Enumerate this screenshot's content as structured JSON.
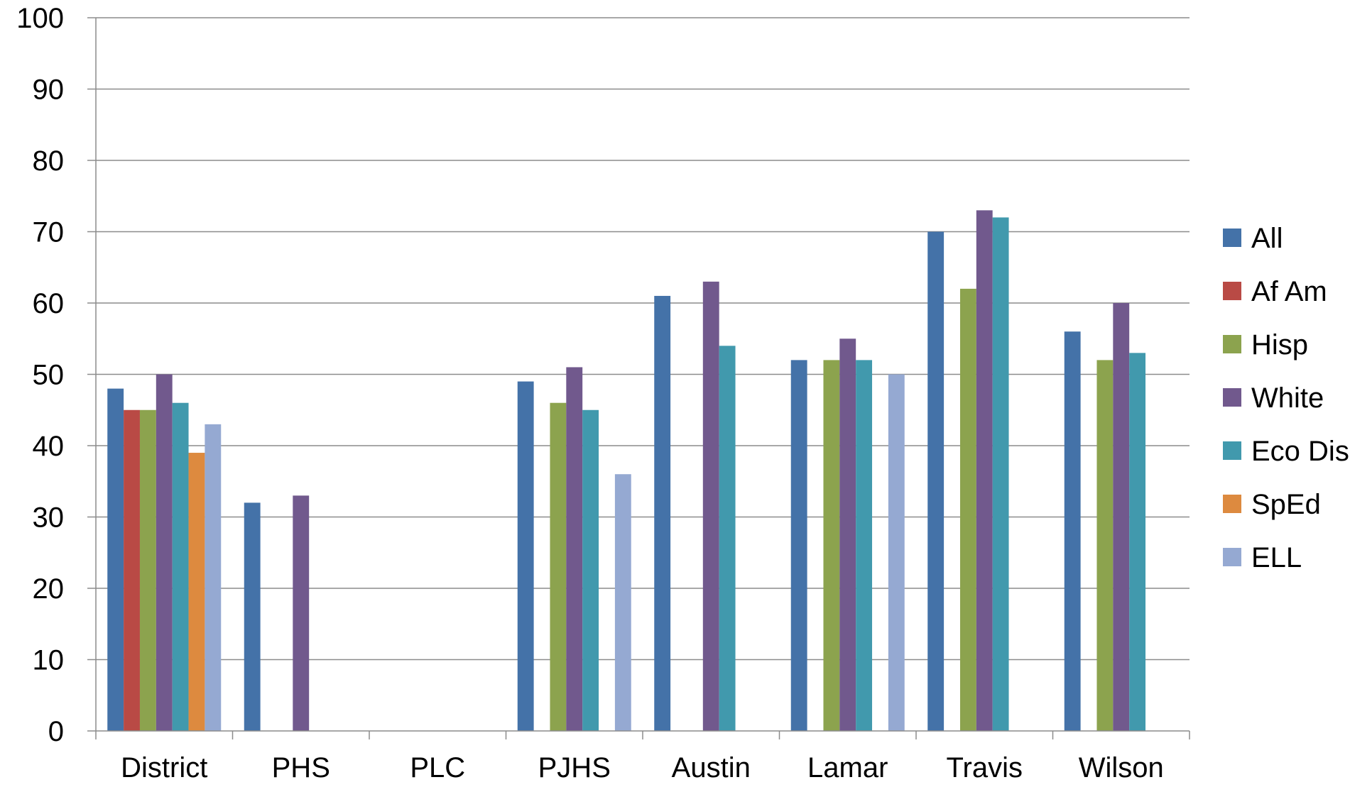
{
  "chart_data": {
    "type": "bar",
    "categories": [
      "District",
      "PHS",
      "PLC",
      "PJHS",
      "Austin",
      "Lamar",
      "Travis",
      "Wilson"
    ],
    "series": [
      {
        "name": "All",
        "color": "#4472A8",
        "values": [
          48,
          32,
          null,
          49,
          61,
          52,
          70,
          56
        ]
      },
      {
        "name": "Af Am",
        "color": "#B94A45",
        "values": [
          45,
          null,
          null,
          null,
          null,
          null,
          null,
          null
        ]
      },
      {
        "name": "Hisp",
        "color": "#8CA34E",
        "values": [
          45,
          null,
          null,
          46,
          null,
          52,
          62,
          52
        ]
      },
      {
        "name": "White",
        "color": "#71598D",
        "values": [
          50,
          33,
          null,
          51,
          63,
          55,
          73,
          60
        ]
      },
      {
        "name": "Eco Dis",
        "color": "#4199AD",
        "values": [
          46,
          null,
          null,
          45,
          54,
          52,
          72,
          53
        ]
      },
      {
        "name": "SpEd",
        "color": "#DD8A3F",
        "values": [
          39,
          null,
          null,
          null,
          null,
          null,
          null,
          null
        ]
      },
      {
        "name": "ELL",
        "color": "#95A9D2",
        "values": [
          43,
          null,
          null,
          36,
          null,
          50,
          null,
          null
        ]
      }
    ],
    "ylim": [
      0,
      100
    ],
    "yticks": [
      0,
      10,
      20,
      30,
      40,
      50,
      60,
      70,
      80,
      90,
      100
    ],
    "grid": true,
    "legend_position": "right",
    "title": "",
    "xlabel": "",
    "ylabel": ""
  }
}
